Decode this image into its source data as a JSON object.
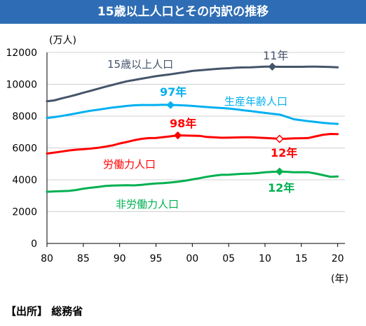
{
  "title": "15歳以上人口とその内訳の推移",
  "source": "【出所】 総務省",
  "chart_data": {
    "type": "line",
    "ylabel": "(万人)",
    "xunit": "(年)",
    "ylim": [
      0,
      12000
    ],
    "yticks": [
      "0",
      "2000",
      "4000",
      "6000",
      "8000",
      "10000",
      "12000"
    ],
    "xlim": [
      1980,
      2021
    ],
    "xticks": [
      {
        "x": 1980,
        "label": "80"
      },
      {
        "x": 1985,
        "label": "85"
      },
      {
        "x": 1990,
        "label": "90"
      },
      {
        "x": 1995,
        "label": "95"
      },
      {
        "x": 2000,
        "label": "00"
      },
      {
        "x": 2005,
        "label": "05"
      },
      {
        "x": 2010,
        "label": "10"
      },
      {
        "x": 2015,
        "label": "15"
      },
      {
        "x": 2020,
        "label": "20"
      }
    ],
    "x": [
      1980,
      1981,
      1982,
      1983,
      1984,
      1985,
      1986,
      1987,
      1988,
      1989,
      1990,
      1991,
      1992,
      1993,
      1994,
      1995,
      1996,
      1997,
      1998,
      1999,
      2000,
      2001,
      2002,
      2003,
      2004,
      2005,
      2006,
      2007,
      2008,
      2009,
      2010,
      2011,
      2012,
      2013,
      2014,
      2015,
      2016,
      2017,
      2018,
      2019,
      2020
    ],
    "series": [
      {
        "name": "15歳以上人口",
        "color": "#44546a",
        "values": [
          8930,
          8990,
          9110,
          9220,
          9340,
          9470,
          9590,
          9720,
          9840,
          9960,
          10080,
          10190,
          10270,
          10350,
          10430,
          10510,
          10570,
          10630,
          10700,
          10760,
          10840,
          10880,
          10920,
          10960,
          10990,
          11010,
          11040,
          11060,
          11070,
          11090,
          11110,
          11110,
          11100,
          11100,
          11100,
          11100,
          11110,
          11110,
          11100,
          11090,
          11070
        ]
      },
      {
        "name": "生産年齢人口",
        "color": "#00b0f0",
        "values": [
          7880,
          7940,
          8010,
          8090,
          8170,
          8260,
          8340,
          8400,
          8470,
          8540,
          8590,
          8640,
          8680,
          8700,
          8700,
          8700,
          8710,
          8700,
          8690,
          8670,
          8640,
          8600,
          8570,
          8540,
          8510,
          8480,
          8430,
          8370,
          8320,
          8260,
          8200,
          8150,
          8100,
          7950,
          7800,
          7740,
          7680,
          7630,
          7580,
          7540,
          7510
        ]
      },
      {
        "name": "労働力人口",
        "color": "#ff0000",
        "values": [
          5650,
          5710,
          5770,
          5840,
          5890,
          5920,
          5960,
          6010,
          6080,
          6160,
          6280,
          6380,
          6490,
          6570,
          6620,
          6630,
          6680,
          6730,
          6790,
          6780,
          6770,
          6760,
          6690,
          6670,
          6640,
          6650,
          6660,
          6670,
          6670,
          6650,
          6630,
          6600,
          6570,
          6580,
          6600,
          6610,
          6630,
          6730,
          6830,
          6880,
          6870
        ]
      },
      {
        "name": "非労働力人口",
        "color": "#00b050",
        "values": [
          3250,
          3270,
          3290,
          3300,
          3360,
          3440,
          3500,
          3550,
          3610,
          3640,
          3650,
          3660,
          3650,
          3680,
          3730,
          3770,
          3790,
          3830,
          3880,
          3940,
          4020,
          4100,
          4190,
          4260,
          4310,
          4320,
          4350,
          4380,
          4390,
          4420,
          4470,
          4500,
          4520,
          4500,
          4470,
          4480,
          4470,
          4390,
          4290,
          4190,
          4210
        ]
      }
    ],
    "annotations": [
      {
        "series": 0,
        "x": 2011,
        "label": "11年",
        "marker": "filled"
      },
      {
        "series": 1,
        "x": 1997,
        "label": "97年",
        "marker": "filled"
      },
      {
        "series": 2,
        "x": 1998,
        "label": "98年",
        "marker": "filled"
      },
      {
        "series": 2,
        "x": 2012,
        "label": "12年",
        "marker": "hollow"
      },
      {
        "series": 3,
        "x": 2012,
        "label": "12年",
        "marker": "filled"
      }
    ]
  }
}
